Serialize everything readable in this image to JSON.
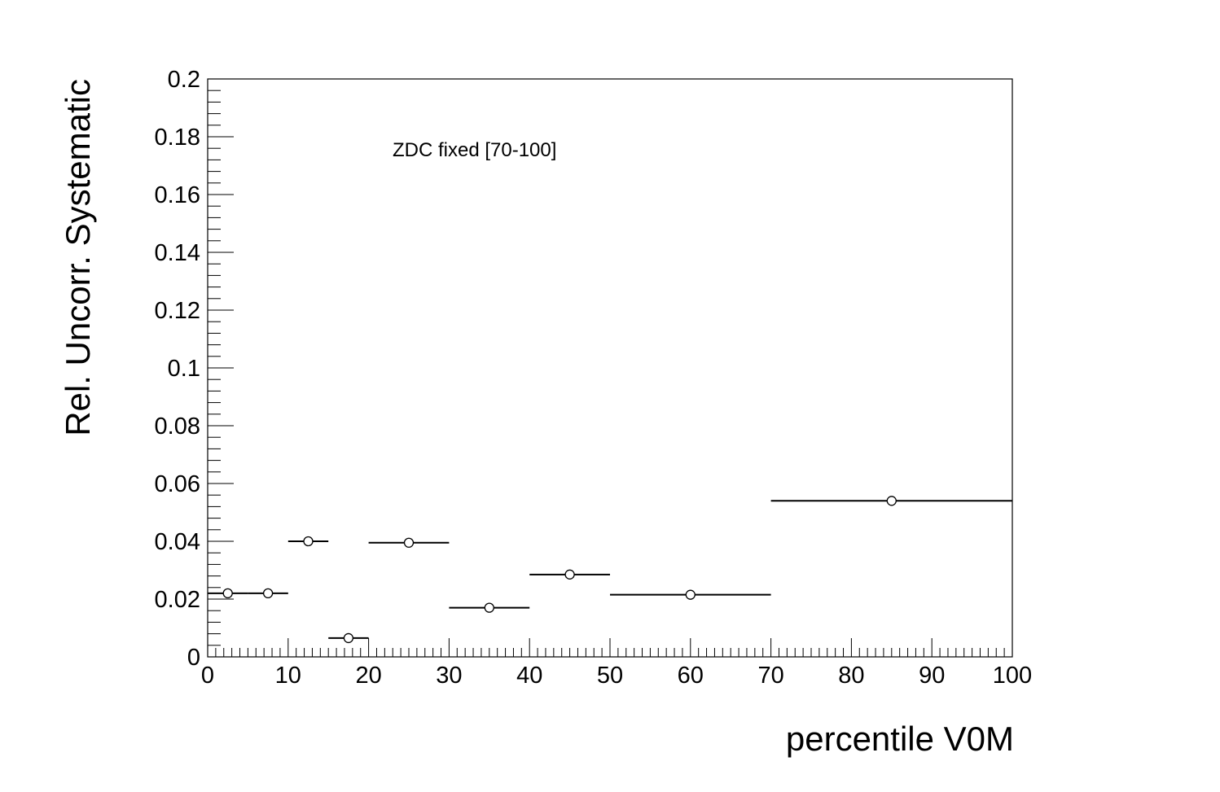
{
  "chart_data": {
    "type": "scatter",
    "xlabel": "percentile V0M",
    "ylabel": "Rel. Uncorr. Systematic",
    "annotation": "ZDC fixed [70-100]",
    "xlim": [
      0,
      100
    ],
    "ylim": [
      0,
      0.2
    ],
    "x_ticks": [
      "0",
      "10",
      "20",
      "30",
      "40",
      "50",
      "60",
      "70",
      "80",
      "90",
      "100"
    ],
    "y_ticks": [
      "0",
      "0.02",
      "0.04",
      "0.06",
      "0.08",
      "0.1",
      "0.12",
      "0.14",
      "0.16",
      "0.18",
      "0.2"
    ],
    "grid": false,
    "legend": "none",
    "marker": "open-circle",
    "color": "#000000",
    "points": [
      {
        "x": 2.5,
        "xlow": 0,
        "xhigh": 5,
        "y": 0.022
      },
      {
        "x": 7.5,
        "xlow": 5,
        "xhigh": 10,
        "y": 0.022
      },
      {
        "x": 12.5,
        "xlow": 10,
        "xhigh": 15,
        "y": 0.04
      },
      {
        "x": 17.5,
        "xlow": 15,
        "xhigh": 20,
        "y": 0.0065
      },
      {
        "x": 25,
        "xlow": 20,
        "xhigh": 30,
        "y": 0.0395
      },
      {
        "x": 35,
        "xlow": 30,
        "xhigh": 40,
        "y": 0.017
      },
      {
        "x": 45,
        "xlow": 40,
        "xhigh": 50,
        "y": 0.0285
      },
      {
        "x": 60,
        "xlow": 50,
        "xhigh": 70,
        "y": 0.0215
      },
      {
        "x": 85,
        "xlow": 70,
        "xhigh": 100,
        "y": 0.054
      }
    ]
  }
}
